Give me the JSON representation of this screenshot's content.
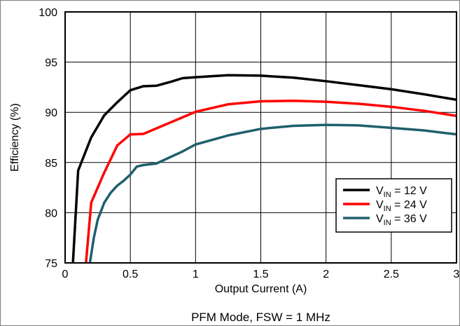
{
  "chart_data": {
    "type": "line",
    "xlabel": "Output Current (A)",
    "ylabel": "Efficiency (%)",
    "caption": "PFM Mode, FSW = 1 MHz",
    "xlim": [
      0,
      3
    ],
    "ylim": [
      75,
      100
    ],
    "x_ticks": [
      0,
      0.5,
      1,
      1.5,
      2,
      2.5,
      3
    ],
    "x_tick_labels": [
      "0",
      "0.5",
      "1",
      "1.5",
      "2",
      "2.5",
      "3"
    ],
    "y_ticks": [
      75,
      80,
      85,
      90,
      95,
      100
    ],
    "y_tick_labels": [
      "75",
      "80",
      "85",
      "90",
      "95",
      "100"
    ],
    "grid": true,
    "legend_position": "bottom-right",
    "series": [
      {
        "name": "VIN = 12 V",
        "legend_main": "V",
        "legend_sub": "IN",
        "legend_rest": " = 12 V",
        "color": "#000000",
        "points": [
          [
            0.06,
            75.0
          ],
          [
            0.1,
            84.2
          ],
          [
            0.2,
            87.5
          ],
          [
            0.3,
            89.7
          ],
          [
            0.4,
            91.0
          ],
          [
            0.5,
            92.2
          ],
          [
            0.6,
            92.6
          ],
          [
            0.7,
            92.65
          ],
          [
            0.8,
            93.0
          ],
          [
            0.9,
            93.4
          ],
          [
            1.0,
            93.5
          ],
          [
            1.25,
            93.7
          ],
          [
            1.5,
            93.65
          ],
          [
            1.75,
            93.45
          ],
          [
            2.0,
            93.1
          ],
          [
            2.25,
            92.7
          ],
          [
            2.5,
            92.3
          ],
          [
            2.75,
            91.8
          ],
          [
            3.0,
            91.25
          ]
        ]
      },
      {
        "name": "VIN = 24 V",
        "legend_main": "V",
        "legend_sub": "IN",
        "legend_rest": " = 24 V",
        "color": "#ff0000",
        "points": [
          [
            0.16,
            75.0
          ],
          [
            0.2,
            81.0
          ],
          [
            0.3,
            84.0
          ],
          [
            0.4,
            86.7
          ],
          [
            0.5,
            87.8
          ],
          [
            0.6,
            87.85
          ],
          [
            0.7,
            88.4
          ],
          [
            0.8,
            88.95
          ],
          [
            0.9,
            89.5
          ],
          [
            1.0,
            90.05
          ],
          [
            1.25,
            90.8
          ],
          [
            1.5,
            91.1
          ],
          [
            1.75,
            91.15
          ],
          [
            2.0,
            91.05
          ],
          [
            2.25,
            90.85
          ],
          [
            2.5,
            90.55
          ],
          [
            2.75,
            90.15
          ],
          [
            3.0,
            89.65
          ]
        ]
      },
      {
        "name": "VIN = 36 V",
        "legend_main": "V",
        "legend_sub": "IN",
        "legend_rest": " = 36 V",
        "color": "#1f5f6e",
        "points": [
          [
            0.19,
            75.0
          ],
          [
            0.22,
            77.5
          ],
          [
            0.25,
            79.3
          ],
          [
            0.3,
            81.0
          ],
          [
            0.35,
            82.0
          ],
          [
            0.4,
            82.7
          ],
          [
            0.45,
            83.2
          ],
          [
            0.5,
            83.8
          ],
          [
            0.55,
            84.6
          ],
          [
            0.6,
            84.75
          ],
          [
            0.7,
            84.9
          ],
          [
            0.8,
            85.5
          ],
          [
            0.9,
            86.1
          ],
          [
            1.0,
            86.8
          ],
          [
            1.25,
            87.7
          ],
          [
            1.5,
            88.35
          ],
          [
            1.75,
            88.65
          ],
          [
            2.0,
            88.75
          ],
          [
            2.25,
            88.7
          ],
          [
            2.5,
            88.45
          ],
          [
            2.75,
            88.2
          ],
          [
            3.0,
            87.8
          ]
        ]
      }
    ]
  }
}
